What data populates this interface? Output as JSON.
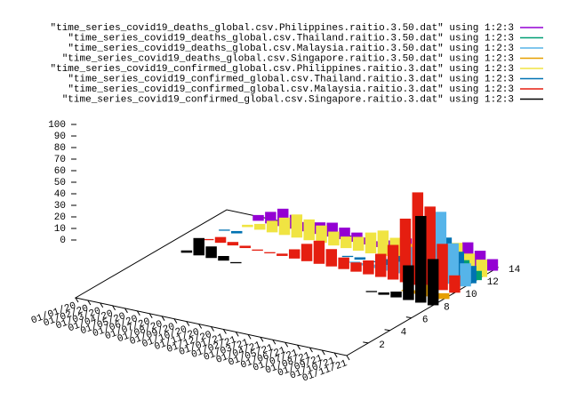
{
  "chart_data": {
    "type": "impulse3d",
    "categories": [
      "01/01/20",
      "01/02/20",
      "01/03/20",
      "01/04/20",
      "01/05/20",
      "01/06/20",
      "01/07/20",
      "01/08/20",
      "01/09/20",
      "01/10/20",
      "01/11/20",
      "01/12/20",
      "01/01/21",
      "01/02/21",
      "01/03/21",
      "01/04/21",
      "01/05/21",
      "01/06/21",
      "01/07/21",
      "01/08/21",
      "01/09/21",
      "01/10/21",
      "01/11/21"
    ],
    "ylim": [
      0,
      14
    ],
    "yticks": [
      2,
      4,
      6,
      8,
      10,
      12,
      14
    ],
    "zlim": [
      0,
      100
    ],
    "zticks": [
      0,
      10,
      20,
      30,
      40,
      50,
      60,
      70,
      80,
      90,
      100
    ],
    "series": [
      {
        "name": "\"time_series_covid19_deaths_global.csv.Philippines.raitio.3.50.dat\" using 1:2:3",
        "color": "#9400d3",
        "y": 13.5,
        "values": [
          0,
          0,
          0,
          5,
          10,
          15,
          12,
          8,
          10,
          12,
          10,
          8,
          6,
          5,
          8,
          12,
          10,
          8,
          12,
          15,
          20,
          15,
          10
        ]
      },
      {
        "name": "\"time_series_covid19_deaths_global.csv.Thailand.raitio.3.50.dat\" using 1:2:3",
        "color": "#009e73",
        "y": 12,
        "values": [
          0,
          0,
          0,
          0,
          0,
          0,
          0,
          0,
          0,
          0,
          0,
          0,
          0,
          0,
          0,
          1,
          3,
          8,
          15,
          25,
          20,
          15,
          8
        ]
      },
      {
        "name": "\"time_series_covid19_deaths_global.csv.Malaysia.raitio.3.50.dat\" using 1:2:3",
        "color": "#56b4e9",
        "y": 11,
        "values": [
          0,
          0,
          0,
          0,
          0,
          0,
          0,
          0,
          0,
          0,
          0,
          0,
          0,
          1,
          2,
          3,
          5,
          10,
          25,
          45,
          60,
          35,
          20
        ]
      },
      {
        "name": "\"time_series_covid19_deaths_global.csv.Singapore.raitio.3.50.dat\" using 1:2:3",
        "color": "#e69f00",
        "y": 9,
        "values": [
          0,
          0,
          0,
          0,
          0,
          0,
          0,
          0,
          0,
          0,
          0,
          0,
          0,
          0,
          0,
          0,
          0,
          0,
          0,
          1,
          3,
          10,
          5
        ]
      },
      {
        "name": "\"time_series_covid19_confirmed_global.csv.Philippines.raitio.3.dat\" using 1:2:3",
        "color": "#f0e442",
        "y": 12.5,
        "values": [
          0,
          0,
          0,
          2,
          5,
          10,
          15,
          20,
          18,
          15,
          12,
          10,
          12,
          18,
          22,
          18,
          15,
          18,
          20,
          22,
          25,
          18,
          15
        ]
      },
      {
        "name": "\"time_series_covid19_confirmed_global.csv.Thailand.raitio.3.dat\" using 1:2:3",
        "color": "#0072b2",
        "y": 11.5,
        "values": [
          0,
          0,
          1,
          2,
          0,
          0,
          0,
          0,
          0,
          0,
          0,
          0,
          1,
          2,
          1,
          5,
          10,
          20,
          30,
          40,
          35,
          25,
          15
        ]
      },
      {
        "name": "\"time_series_covid19_confirmed_global.csv.Malaysia.raitio.3.dat\" using 1:2:3",
        "color": "#e51e10",
        "y": 10,
        "values": [
          0,
          0,
          1,
          5,
          3,
          2,
          1,
          1,
          2,
          8,
          15,
          20,
          15,
          10,
          8,
          12,
          20,
          30,
          55,
          80,
          70,
          40,
          15
        ]
      },
      {
        "name": "\"time_series_covid19_confirmed_global.csv.Singapore.raitio.3.dat\" using 1:2:3",
        "color": "#000000",
        "y": 8,
        "values": [
          0,
          0,
          2,
          15,
          10,
          4,
          1,
          0,
          0,
          0,
          0,
          0,
          0,
          0,
          0,
          0,
          0,
          1,
          2,
          5,
          30,
          75,
          40
        ]
      }
    ]
  }
}
